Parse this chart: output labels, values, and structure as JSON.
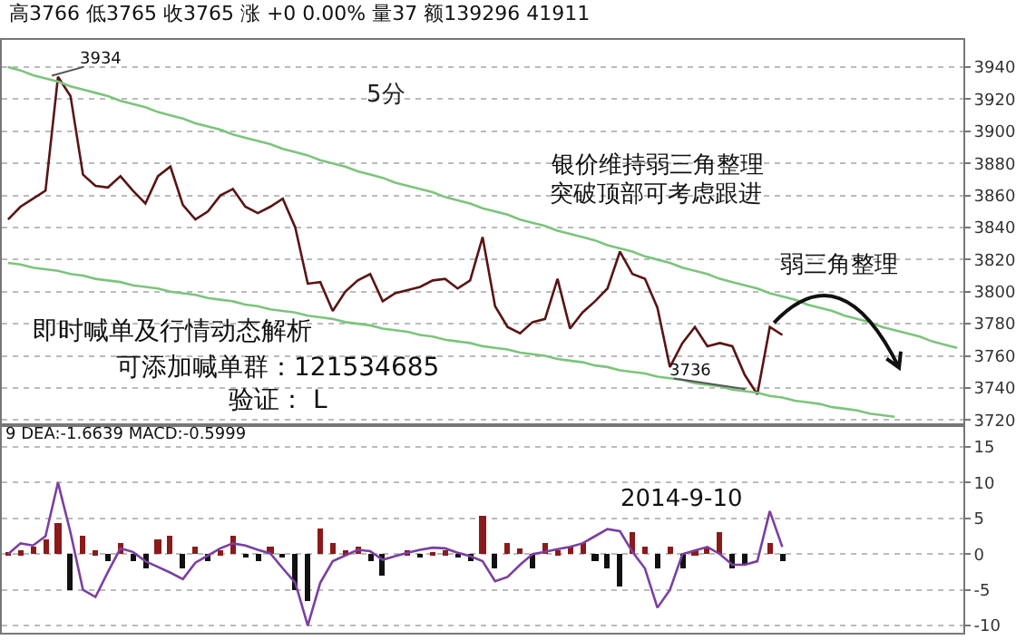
{
  "chart_data": [
    {
      "type": "line",
      "title": "5分",
      "categories": [
        null,
        null,
        null,
        null,
        null,
        null,
        null,
        null,
        null,
        null,
        null,
        null,
        null,
        null,
        null,
        null,
        null,
        null,
        null,
        null,
        null,
        null,
        null,
        null,
        null,
        null,
        null,
        null,
        null,
        null,
        null,
        null,
        null,
        null,
        null,
        null,
        null,
        null,
        null,
        null,
        null,
        null,
        null,
        null,
        null,
        null,
        null,
        null,
        null,
        null,
        null,
        null,
        null,
        null,
        null,
        null,
        null,
        null,
        null,
        null,
        null,
        null,
        null,
        null,
        null,
        null,
        null,
        null,
        null,
        null,
        null,
        null,
        null,
        null,
        null,
        null,
        null
      ],
      "ylim": [
        3718,
        3957
      ],
      "yticks": [
        3720,
        3740,
        3760,
        3780,
        3800,
        3820,
        3840,
        3860,
        3880,
        3900,
        3920,
        3940
      ],
      "grid": "y",
      "tick_labels": "y",
      "annotations": [
        "高3766 低3765 收3765 涨 +0 0.00% 量37 额139296 41911",
        "银价维持弱三角整理",
        "突破顶部可考虑跟进",
        "弱三角整理",
        "即时喊单及行情动态解析",
        "可添加喊单群：121534685",
        "验证： L",
        "3934",
        "3736"
      ],
      "series": [
        {
          "color": "#5a1414",
          "values": [
            3845,
            3853,
            3858,
            3863,
            3934,
            3922,
            3873,
            3866,
            3865,
            3872,
            3863,
            3855,
            3872,
            3878,
            3854,
            3845,
            3850,
            3860,
            3864,
            3853,
            3849,
            3853,
            3858,
            3840,
            3805,
            3806,
            3788,
            3800,
            3807,
            3811,
            3794,
            3799,
            3801,
            3803,
            3807,
            3808,
            3802,
            3807,
            3834,
            3791,
            3778,
            3774,
            3781,
            3783,
            3808,
            3777,
            3787,
            3794,
            3802,
            3825,
            3811,
            3808,
            3790,
            3753,
            3768,
            3778,
            3766,
            3768,
            3766,
            3748,
            3736,
            3778,
            3773,
            null,
            null,
            null,
            null,
            null,
            null,
            null,
            null,
            null,
            null,
            null,
            null,
            null,
            null
          ]
        },
        {
          "color": "#7cc47c",
          "values": [
            3940,
            3938,
            3935,
            3933,
            3931,
            3928,
            3926,
            3924,
            3922,
            3919,
            3917,
            3915,
            3912,
            3910,
            3908,
            3905,
            3903,
            3901,
            3898,
            3896,
            3894,
            3892,
            3889,
            3887,
            3885,
            3882,
            3880,
            3878,
            3875,
            3873,
            3871,
            3868,
            3866,
            3864,
            3862,
            3859,
            3857,
            3855,
            3852,
            3850,
            3848,
            3845,
            3843,
            3841,
            3838,
            3836,
            3834,
            3832,
            3829,
            3827,
            3825,
            3822,
            3820,
            3818,
            3815,
            3813,
            3811,
            3808,
            3806,
            3804,
            3802,
            3799,
            3797,
            3795,
            3792,
            3790,
            3788,
            3785,
            3783,
            3781,
            3778,
            3776,
            3774,
            3772,
            3769,
            3767,
            3765
          ]
        },
        {
          "color": "#7cc47c",
          "values": [
            3818,
            3817,
            3815,
            3814,
            3813,
            3811,
            3810,
            3808,
            3807,
            3806,
            3804,
            3803,
            3802,
            3800,
            3799,
            3798,
            3796,
            3795,
            3794,
            3792,
            3791,
            3789,
            3788,
            3787,
            3785,
            3784,
            3783,
            3781,
            3780,
            3779,
            3777,
            3776,
            3775,
            3773,
            3772,
            3770,
            3769,
            3768,
            3766,
            3765,
            3764,
            3762,
            3761,
            3760,
            3758,
            3757,
            3756,
            3754,
            3753,
            3751,
            3750,
            3749,
            3747,
            3746,
            3745,
            3743,
            3742,
            3741,
            3739,
            3738,
            3737,
            3735,
            3734,
            3732,
            3731,
            3730,
            3728,
            3727,
            3726,
            3724,
            3723,
            3722,
            null,
            null,
            null,
            null,
            null
          ]
        }
      ]
    },
    {
      "type": "line",
      "categories": [
        null,
        null,
        null,
        null,
        null,
        null,
        null,
        null,
        null,
        null,
        null,
        null,
        null,
        null,
        null,
        null,
        null,
        null,
        null,
        null,
        null,
        null,
        null,
        null,
        null,
        null,
        null,
        null,
        null,
        null,
        null,
        null,
        null,
        null,
        null,
        null,
        null,
        null,
        null,
        null,
        null,
        null,
        null,
        null,
        null,
        null,
        null,
        null,
        null,
        null,
        null,
        null,
        null,
        null,
        null,
        null,
        null,
        null,
        null,
        null,
        null,
        null,
        null,
        null,
        null,
        null,
        null,
        null,
        null,
        null,
        null,
        null,
        null,
        null,
        null,
        null,
        null
      ],
      "ylim": [
        -11,
        17.8
      ],
      "yticks": [
        15,
        10,
        5,
        0,
        -5,
        -10
      ],
      "grid": "y",
      "tick_labels": "y",
      "annotations": [
        "9 DEA:-1.6639 MACD:-0.5999",
        "2014-9-10"
      ],
      "series": [
        {
          "type": "bar",
          "values": [
            0.3,
            0.5,
            1,
            2,
            4.3,
            -5.1,
            2.5,
            0.5,
            -1,
            1.5,
            -1,
            -2,
            2,
            2.5,
            -2,
            1,
            -1,
            0.5,
            2.5,
            -0.5,
            -1,
            1,
            -0.5,
            -5,
            -6.5,
            3.5,
            1.5,
            0.5,
            1,
            -1,
            -3,
            null,
            0.5,
            -0.5,
            0.3,
            0.5,
            -0.3,
            -1,
            5.5,
            -2,
            1.5,
            0.8,
            -2,
            1.5,
            0.5,
            1,
            1.5,
            -1,
            -2,
            -4.5,
            3,
            1,
            -2,
            1,
            -2,
            0.5,
            1,
            3,
            -2,
            -1.5,
            null,
            1.5,
            -1,
            null,
            null,
            null,
            null,
            null,
            null,
            null,
            null,
            null,
            null,
            null,
            null,
            null,
            null
          ],
          "colors": [
            "#8b1a1a",
            "#8b1a1a",
            "#8b1a1a",
            "#8b1a1a",
            "#8b1a1a",
            "#111111",
            "#8b1a1a",
            "#8b1a1a",
            "#111111",
            "#8b1a1a",
            "#111111",
            "#111111",
            "#8b1a1a",
            "#8b1a1a",
            "#111111",
            "#8b1a1a",
            "#111111",
            "#8b1a1a",
            "#8b1a1a",
            "#111111",
            "#111111",
            "#8b1a1a",
            "#111111",
            "#111111",
            "#111111",
            "#8b1a1a",
            "#8b1a1a",
            "#8b1a1a",
            "#8b1a1a",
            "#111111",
            "#111111",
            "#111111",
            "#8b1a1a",
            "#111111",
            "#8b1a1a",
            "#8b1a1a",
            "#111111",
            "#111111",
            "#8b1a1a",
            "#111111",
            "#8b1a1a",
            "#8b1a1a",
            "#111111",
            "#8b1a1a",
            "#8b1a1a",
            "#8b1a1a",
            "#8b1a1a",
            "#111111",
            "#111111",
            "#111111",
            "#8b1a1a",
            "#8b1a1a",
            "#111111",
            "#8b1a1a",
            "#111111",
            "#8b1a1a",
            "#8b1a1a",
            "#8b1a1a",
            "#111111",
            "#111111",
            "#111111",
            "#8b1a1a",
            "#111111",
            null,
            null,
            null,
            null,
            null,
            null,
            null,
            null,
            null,
            null,
            null,
            null,
            null,
            null
          ]
        },
        {
          "type": "line",
          "color": "#7b3fa0",
          "values": [
            0,
            1.5,
            1.2,
            2.5,
            10,
            3,
            -5,
            -6,
            -2.5,
            0.8,
            0.3,
            -1,
            -1.8,
            -2.6,
            -3.5,
            -1.2,
            -0.2,
            0.8,
            1.5,
            1.2,
            0.6,
            0.1,
            -2,
            -4,
            -10,
            -4,
            -1,
            -0.2,
            0.6,
            0.4,
            -0.8,
            -0.3,
            0.2,
            0.6,
            0.9,
            0.8,
            0.2,
            -0.3,
            -1,
            -3.8,
            -3.2,
            -1.5,
            0,
            0.3,
            0.7,
            1,
            1.5,
            2.5,
            3.5,
            3.2,
            0.3,
            -2,
            -7.5,
            -5,
            0,
            0.5,
            1,
            0,
            -1.5,
            -1.5,
            -1,
            6,
            1,
            null,
            null,
            null,
            null,
            null,
            null,
            null,
            null,
            null,
            null,
            null,
            null,
            null,
            null
          ]
        }
      ]
    }
  ]
}
